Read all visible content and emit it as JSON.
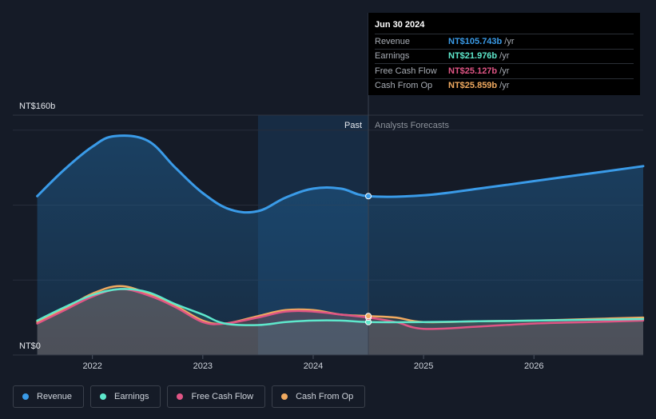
{
  "tooltip": {
    "date": "Jun 30 2024",
    "rows": [
      {
        "label": "Revenue",
        "value": "NT$105.743b",
        "unit": "/yr",
        "color": "#3a9be8"
      },
      {
        "label": "Earnings",
        "value": "NT$21.976b",
        "unit": "/yr",
        "color": "#5ee8cc"
      },
      {
        "label": "Free Cash Flow",
        "value": "NT$25.127b",
        "unit": "/yr",
        "color": "#e05585"
      },
      {
        "label": "Cash From Op",
        "value": "NT$25.859b",
        "unit": "/yr",
        "color": "#f0aa60"
      }
    ]
  },
  "legend": [
    {
      "label": "Revenue",
      "color": "#3a9be8"
    },
    {
      "label": "Earnings",
      "color": "#5ee8cc"
    },
    {
      "label": "Free Cash Flow",
      "color": "#e05585"
    },
    {
      "label": "Cash From Op",
      "color": "#f0aa60"
    }
  ],
  "chart_data": {
    "type": "area",
    "y_unit_labels": [
      "NT$160b",
      "NT$0"
    ],
    "ylim": [
      0,
      160
    ],
    "xlim": [
      2021.51,
      2026.99
    ],
    "x_ticks": [
      2022,
      2023,
      2024,
      2025,
      2026
    ],
    "past_label": "Past",
    "forecast_label": "Analysts Forecasts",
    "past_start": 2023.5,
    "divider_x": 2024.5,
    "series": [
      {
        "name": "Revenue",
        "color": "#3a9be8",
        "forecast_from": 2024.5,
        "points": [
          [
            2021.5,
            106
          ],
          [
            2021.75,
            124
          ],
          [
            2022.0,
            139
          ],
          [
            2022.2,
            146
          ],
          [
            2022.5,
            143
          ],
          [
            2022.75,
            125
          ],
          [
            2023.0,
            108
          ],
          [
            2023.25,
            97
          ],
          [
            2023.5,
            96
          ],
          [
            2023.75,
            105
          ],
          [
            2024.0,
            111
          ],
          [
            2024.25,
            111
          ],
          [
            2024.5,
            106
          ],
          [
            2025.0,
            106.5
          ],
          [
            2025.5,
            111
          ],
          [
            2026.0,
            116
          ],
          [
            2026.5,
            121
          ],
          [
            2026.99,
            126
          ]
        ]
      },
      {
        "name": "Earnings",
        "color": "#5ee8cc",
        "forecast_from": 2024.5,
        "points": [
          [
            2021.5,
            23
          ],
          [
            2021.75,
            32
          ],
          [
            2022.0,
            40
          ],
          [
            2022.25,
            44
          ],
          [
            2022.5,
            42
          ],
          [
            2022.75,
            34
          ],
          [
            2023.0,
            27
          ],
          [
            2023.2,
            21
          ],
          [
            2023.5,
            20
          ],
          [
            2023.75,
            22
          ],
          [
            2024.0,
            23
          ],
          [
            2024.25,
            23
          ],
          [
            2024.5,
            22
          ],
          [
            2025.0,
            22
          ],
          [
            2025.5,
            22.5
          ],
          [
            2026.0,
            23
          ],
          [
            2026.5,
            23.5
          ],
          [
            2026.99,
            24
          ]
        ]
      },
      {
        "name": "Free Cash Flow",
        "color": "#e05585",
        "forecast_from": 2024.5,
        "points": [
          [
            2021.5,
            21
          ],
          [
            2021.75,
            30
          ],
          [
            2022.0,
            39
          ],
          [
            2022.25,
            44
          ],
          [
            2022.5,
            40
          ],
          [
            2022.75,
            32
          ],
          [
            2023.0,
            22
          ],
          [
            2023.2,
            21
          ],
          [
            2023.5,
            25
          ],
          [
            2023.75,
            29
          ],
          [
            2024.0,
            29
          ],
          [
            2024.25,
            27
          ],
          [
            2024.5,
            25
          ],
          [
            2024.75,
            22
          ],
          [
            2025.0,
            17.5
          ],
          [
            2025.5,
            19
          ],
          [
            2026.0,
            21
          ],
          [
            2026.5,
            22
          ],
          [
            2026.99,
            23
          ]
        ]
      },
      {
        "name": "Cash From Op",
        "color": "#f0aa60",
        "forecast_from": 2024.5,
        "points": [
          [
            2021.5,
            22
          ],
          [
            2021.75,
            31
          ],
          [
            2022.0,
            41
          ],
          [
            2022.25,
            46
          ],
          [
            2022.5,
            41
          ],
          [
            2022.75,
            33
          ],
          [
            2023.0,
            23
          ],
          [
            2023.2,
            21
          ],
          [
            2023.5,
            26
          ],
          [
            2023.75,
            30
          ],
          [
            2024.0,
            30
          ],
          [
            2024.25,
            27
          ],
          [
            2024.5,
            26
          ],
          [
            2024.75,
            25
          ],
          [
            2025.0,
            22
          ],
          [
            2025.5,
            22.5
          ],
          [
            2026.0,
            23
          ],
          [
            2026.5,
            24
          ],
          [
            2026.99,
            25
          ]
        ]
      }
    ]
  }
}
